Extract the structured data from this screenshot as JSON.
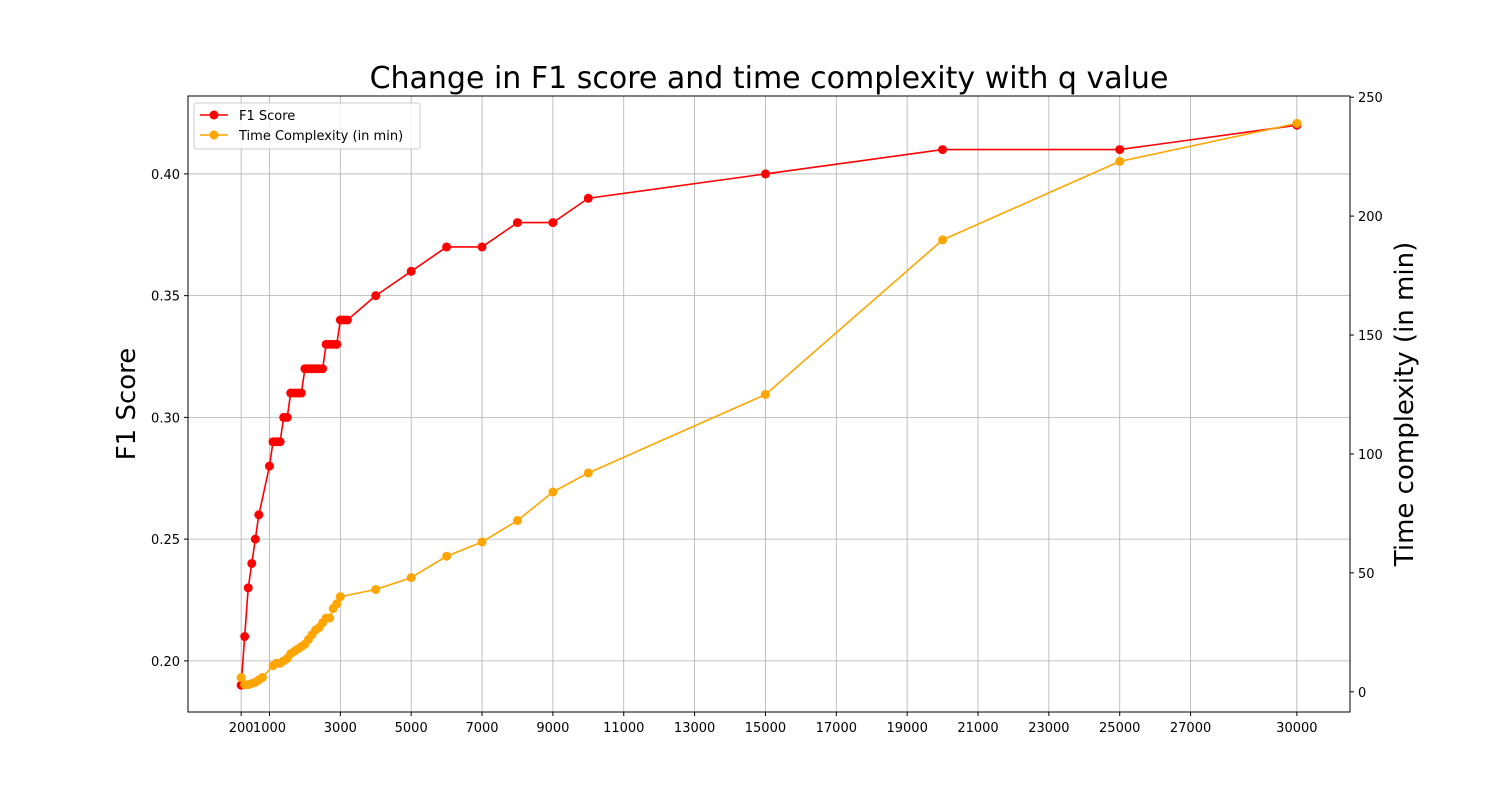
{
  "chart_data": {
    "type": "line",
    "title": "Change in F1 score and time complexity with q value",
    "xlabel": "",
    "ylabel": "F1 Score",
    "y2label": "Time complexity (in min)",
    "grid": true,
    "legend_position": "top-left",
    "xlim": [
      -1300,
      31500
    ],
    "ylim": [
      0.179,
      0.432
    ],
    "y2lim": [
      -8.5,
      250.5
    ],
    "xticks": [
      200,
      1000,
      3000,
      5000,
      7000,
      9000,
      11000,
      13000,
      15000,
      17000,
      19000,
      21000,
      23000,
      25000,
      27000,
      30000
    ],
    "xtick_labels": [
      "200",
      "1000",
      "3000",
      "5000",
      "7000",
      "9000",
      "11000",
      "13000",
      "15000",
      "17000",
      "19000",
      "21000",
      "23000",
      "25000",
      "27000",
      "30000"
    ],
    "yticks": [
      0.2,
      0.25,
      0.3,
      0.35,
      0.4
    ],
    "ytick_labels": [
      "0.20",
      "0.25",
      "0.30",
      "0.35",
      "0.40"
    ],
    "y2ticks": [
      0,
      50,
      100,
      150,
      200,
      250
    ],
    "y2tick_labels": [
      "0",
      "50",
      "100",
      "150",
      "200",
      "250"
    ],
    "x": [
      200,
      300,
      400,
      500,
      600,
      700,
      800,
      900,
      1000,
      1100,
      1200,
      1300,
      1400,
      1500,
      1600,
      1700,
      1800,
      1900,
      2000,
      2100,
      2200,
      2300,
      2400,
      2500,
      2600,
      2700,
      2800,
      2900,
      3000,
      4000,
      5000,
      6000,
      7000,
      8000,
      9000,
      10000,
      15000,
      20000,
      25000,
      30000
    ],
    "series": [
      {
        "name": "F1 Score",
        "axis": "left",
        "color": "#ff0000",
        "values": [
          0.19,
          0.21,
          0.23,
          0.24,
          0.25,
          0.26,
          0.28,
          0.29,
          0.29,
          0.29,
          0.3,
          0.3,
          0.31,
          0.31,
          0.31,
          0.31,
          0.32,
          0.32,
          0.32,
          0.32,
          0.32,
          0.32,
          0.33,
          0.33,
          0.33,
          0.33,
          0.34,
          0.34,
          0.34,
          0.35,
          0.36,
          0.37,
          0.37,
          0.38,
          0.38,
          0.39,
          0.4,
          0.41,
          0.41,
          0.42
        ],
        "x": [
          200,
          300,
          400,
          500,
          600,
          700,
          1000,
          1100,
          1200,
          1300,
          1400,
          1500,
          1600,
          1700,
          1800,
          1900,
          2000,
          2100,
          2200,
          2300,
          2400,
          2500,
          2600,
          2700,
          2800,
          2900,
          3000,
          3100,
          3200,
          4000,
          5000,
          6000,
          7000,
          8000,
          9000,
          10000,
          15000,
          20000,
          25000,
          30000
        ]
      },
      {
        "name": "Time Complexity (in min)",
        "axis": "right",
        "color": "#ffa500",
        "values": [
          6,
          3,
          3,
          3.5,
          4,
          5,
          6,
          11,
          12,
          12,
          13,
          14,
          16,
          17,
          18,
          19,
          20,
          22,
          24,
          26,
          27,
          29,
          31,
          31,
          35,
          37,
          40,
          43,
          48,
          57,
          63,
          72,
          84,
          92,
          125,
          190,
          223,
          239
        ],
        "x": [
          200,
          300,
          400,
          500,
          600,
          700,
          800,
          1100,
          1200,
          1300,
          1400,
          1500,
          1600,
          1700,
          1800,
          1900,
          2000,
          2100,
          2200,
          2300,
          2400,
          2500,
          2600,
          2700,
          2800,
          2900,
          3000,
          4000,
          5000,
          6000,
          7000,
          8000,
          9000,
          10000,
          15000,
          20000,
          25000,
          30000
        ]
      }
    ]
  }
}
